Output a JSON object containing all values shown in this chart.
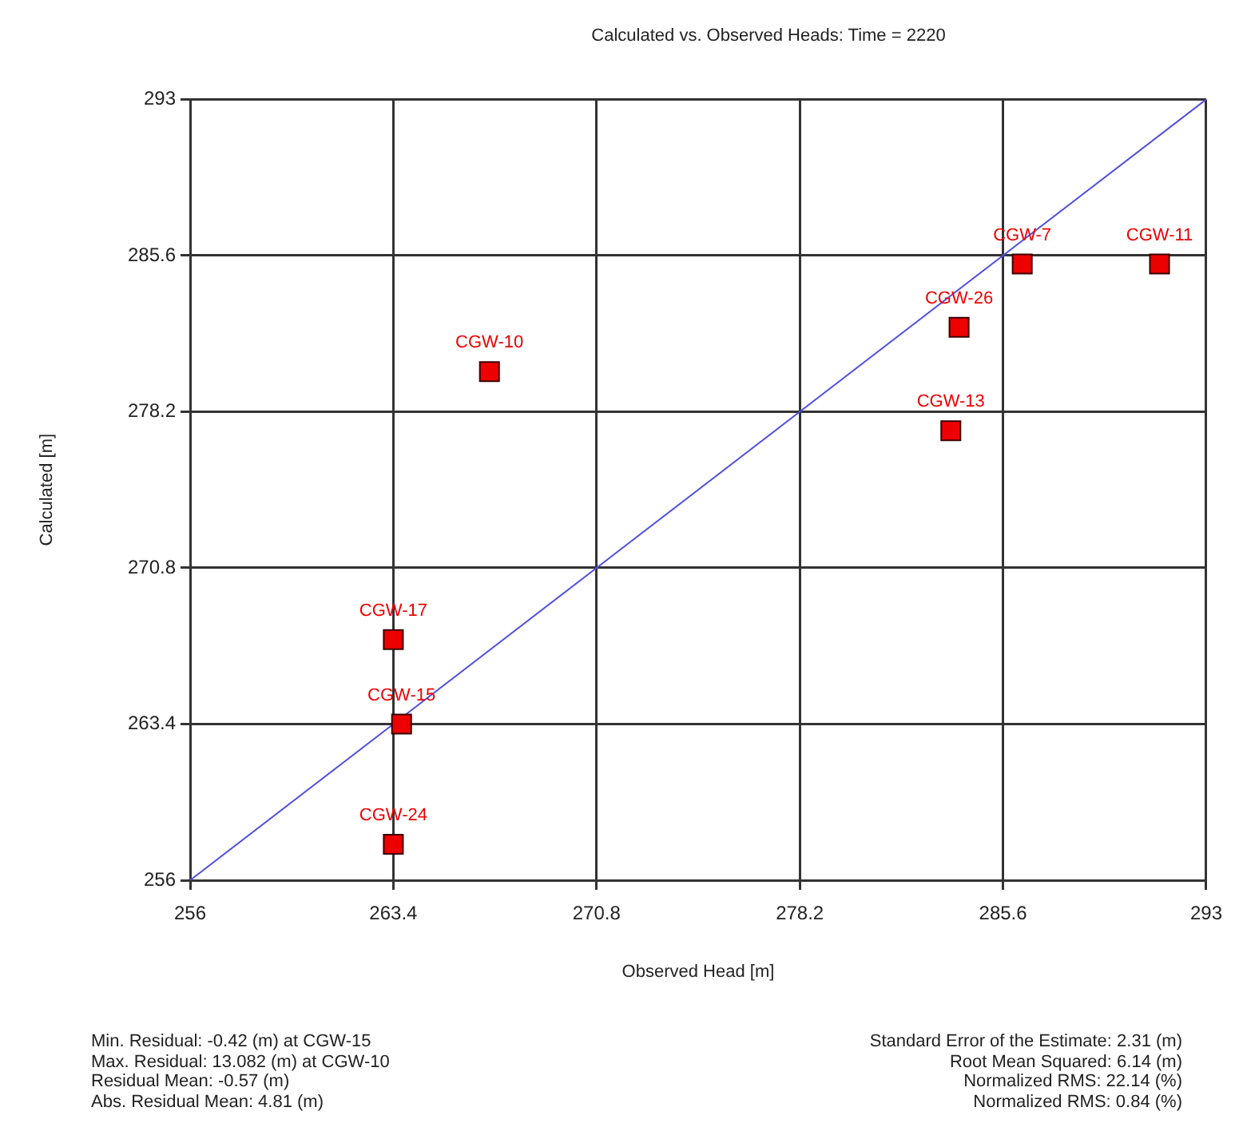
{
  "chart_data": {
    "type": "scatter",
    "title": "Calculated vs. Observed Heads: Time = 2220",
    "xlabel": "Observed Head [m]",
    "ylabel": "Calculated [m]",
    "xlim": [
      256,
      293
    ],
    "ylim": [
      256,
      293
    ],
    "xticks": [
      256,
      263.4,
      270.8,
      278.2,
      285.6,
      293
    ],
    "yticks": [
      256,
      263.4,
      270.8,
      278.2,
      285.6,
      293
    ],
    "grid": true,
    "marker": "square",
    "series": [
      {
        "type": "scatter",
        "color": "#ee0000",
        "x": [
          286.3,
          291.3,
          284.0,
          266.9,
          283.7,
          263.4,
          263.7,
          263.4
        ],
        "values": [
          285.2,
          285.2,
          282.2,
          280.1,
          277.3,
          267.4,
          263.4,
          257.7
        ]
      },
      {
        "type": "line",
        "color": "#5050e0",
        "marker": "none",
        "x": [
          256,
          293
        ],
        "values": [
          256,
          293
        ]
      }
    ],
    "annotations": [
      {
        "text": "CGW-7",
        "x": 286.3,
        "y": 285.2
      },
      {
        "text": "CGW-11",
        "x": 291.3,
        "y": 285.2
      },
      {
        "text": "CGW-26",
        "x": 284.0,
        "y": 282.2
      },
      {
        "text": "CGW-10",
        "x": 266.9,
        "y": 280.1
      },
      {
        "text": "CGW-13",
        "x": 283.7,
        "y": 277.3
      },
      {
        "text": "CGW-17",
        "x": 263.4,
        "y": 267.4
      },
      {
        "text": "CGW-15",
        "x": 263.7,
        "y": 263.4
      },
      {
        "text": "CGW-24",
        "x": 263.4,
        "y": 257.7
      },
      "Min. Residual: -0.42 (m) at CGW-15",
      "Max. Residual: 13.082 (m) at CGW-10",
      "Residual Mean: -0.57 (m)",
      "Abs. Residual Mean: 4.81 (m)",
      "Standard Error of the Estimate: 2.31 (m)",
      "Root Mean Squared: 6.14 (m)",
      "Normalized RMS: 22.14 (%)",
      "Normalized RMS: 0.84 (%)"
    ]
  }
}
